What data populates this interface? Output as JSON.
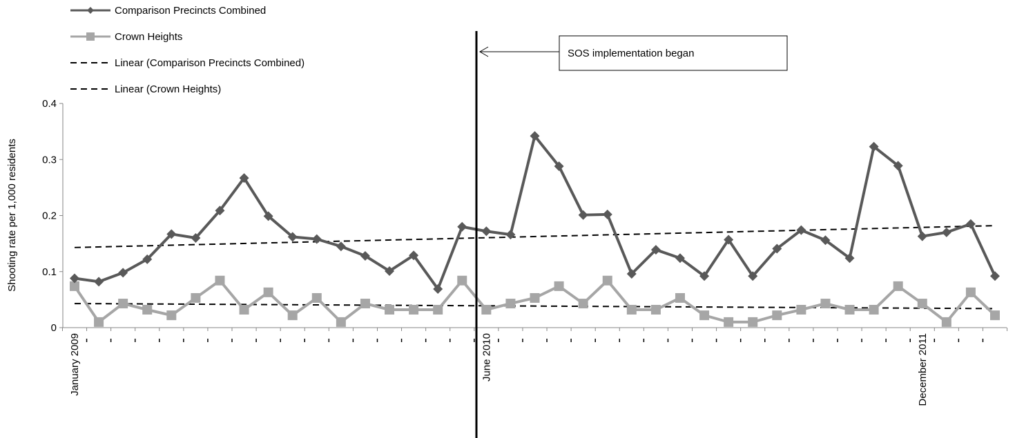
{
  "chart_data": {
    "type": "line",
    "title": "",
    "ylabel": "Shooting rate per 1,000 residents",
    "xlabel": "",
    "ylim": [
      0,
      0.4
    ],
    "yticks": [
      "0",
      "0.1",
      "0.2",
      "0.3",
      "0.4"
    ],
    "x_tick_labels": [
      {
        "index": 0,
        "label": "January 2009"
      },
      {
        "index": 17,
        "label": "June 2010"
      },
      {
        "index": 35,
        "label": "December 2011"
      }
    ],
    "legend": {
      "placement": "top-left",
      "entries": [
        "Comparison Precincts Combined",
        "Crown Heights",
        "Linear (Comparison Precincts Combined)",
        "Linear (Crown Heights)"
      ]
    },
    "series": [
      {
        "name": "Comparison Precincts Combined",
        "color": "#595959",
        "marker": "diamond",
        "values": [
          0.088,
          0.082,
          0.098,
          0.122,
          0.167,
          0.16,
          0.209,
          0.267,
          0.199,
          0.162,
          0.158,
          0.145,
          0.128,
          0.101,
          0.129,
          0.069,
          0.18,
          0.172,
          0.166,
          0.342,
          0.288,
          0.201,
          0.202,
          0.096,
          0.139,
          0.124,
          0.092,
          0.157,
          0.092,
          0.141,
          0.174,
          0.156,
          0.124,
          0.323,
          0.289,
          0.163,
          0.17,
          0.185,
          0.092
        ]
      },
      {
        "name": "Crown Heights",
        "color": "#a6a6a6",
        "marker": "square",
        "values": [
          0.074,
          0.01,
          0.043,
          0.032,
          0.022,
          0.053,
          0.084,
          0.032,
          0.063,
          0.022,
          0.053,
          0.01,
          0.043,
          0.032,
          0.032,
          0.032,
          0.084,
          0.032,
          0.043,
          0.053,
          0.074,
          0.043,
          0.084,
          0.032,
          0.032,
          0.053,
          0.022,
          0.01,
          0.01,
          0.022,
          0.032,
          0.043,
          0.032,
          0.032,
          0.074,
          0.043,
          0.01,
          0.063,
          0.022
        ]
      }
    ],
    "trendlines": [
      {
        "name": "Linear (Comparison Precincts Combined)",
        "start": 0.143,
        "end": 0.182
      },
      {
        "name": "Linear (Crown Heights)",
        "start": 0.043,
        "end": 0.034
      }
    ],
    "annotation": {
      "text": "SOS implementation began",
      "at_index": 16.5
    }
  }
}
